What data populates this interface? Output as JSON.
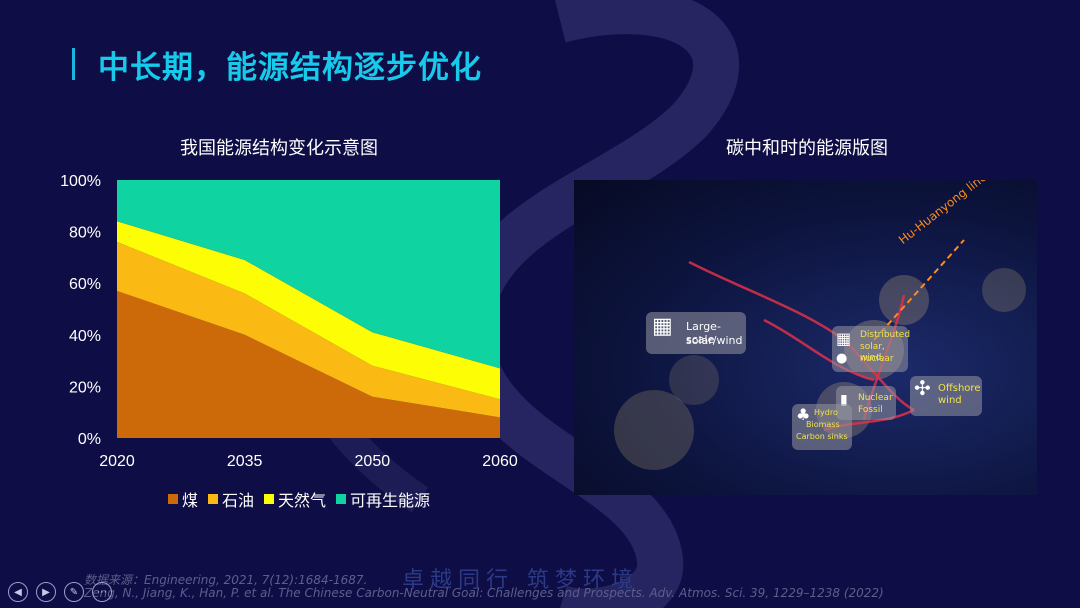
{
  "slide": {
    "title": "中长期，能源结构逐步优化",
    "source_line": "数据来源：Engineering, 2021, 7(12):1684-1687.",
    "reference_line": "Zeng, N., Jiang, K., Han, P. et al. The Chinese Carbon-Neutral Goal: Challenges and Prospects. Adv. Atmos. Sci. 39, 1229–1238 (2022)",
    "watermark": "卓越同行 筑梦环境"
  },
  "left_panel": {
    "title": "我国能源结构变化示意图"
  },
  "right_panel": {
    "title": "碳中和时的能源版图",
    "line_label": "Hu-Huanyong line",
    "cards": [
      {
        "name": "large-scale",
        "line1": "Large-scale",
        "line2": "solar/wind"
      },
      {
        "name": "distributed",
        "line1": "Distributed",
        "line2": "solar, wind,",
        "line3": "nuclear"
      },
      {
        "name": "offshore",
        "line1": "Offshore",
        "line2": "wind"
      },
      {
        "name": "nuclear",
        "line1": "Nuclear",
        "line2": "Fossil"
      },
      {
        "name": "hydro",
        "line1": "Hydro",
        "line2": "Biomass",
        "line3": "Carbon sinks"
      }
    ]
  },
  "chart_data": {
    "type": "area",
    "stacked": true,
    "x": [
      "2020",
      "2035",
      "2050",
      "2060"
    ],
    "yticks": [
      "0%",
      "20%",
      "40%",
      "60%",
      "80%",
      "100%"
    ],
    "ylim": [
      0,
      100
    ],
    "series": [
      {
        "name": "煤",
        "color": "#cc6a0a",
        "values": [
          57,
          40,
          16,
          8
        ]
      },
      {
        "name": "石油",
        "color": "#fbb913",
        "values": [
          19,
          16,
          12,
          7
        ]
      },
      {
        "name": "天然气",
        "color": "#fdfd05",
        "values": [
          8,
          13,
          13,
          12
        ]
      },
      {
        "name": "可再生能源",
        "color": "#0fd3a0",
        "values": [
          16,
          31,
          59,
          73
        ]
      }
    ],
    "legend_position": "bottom"
  }
}
